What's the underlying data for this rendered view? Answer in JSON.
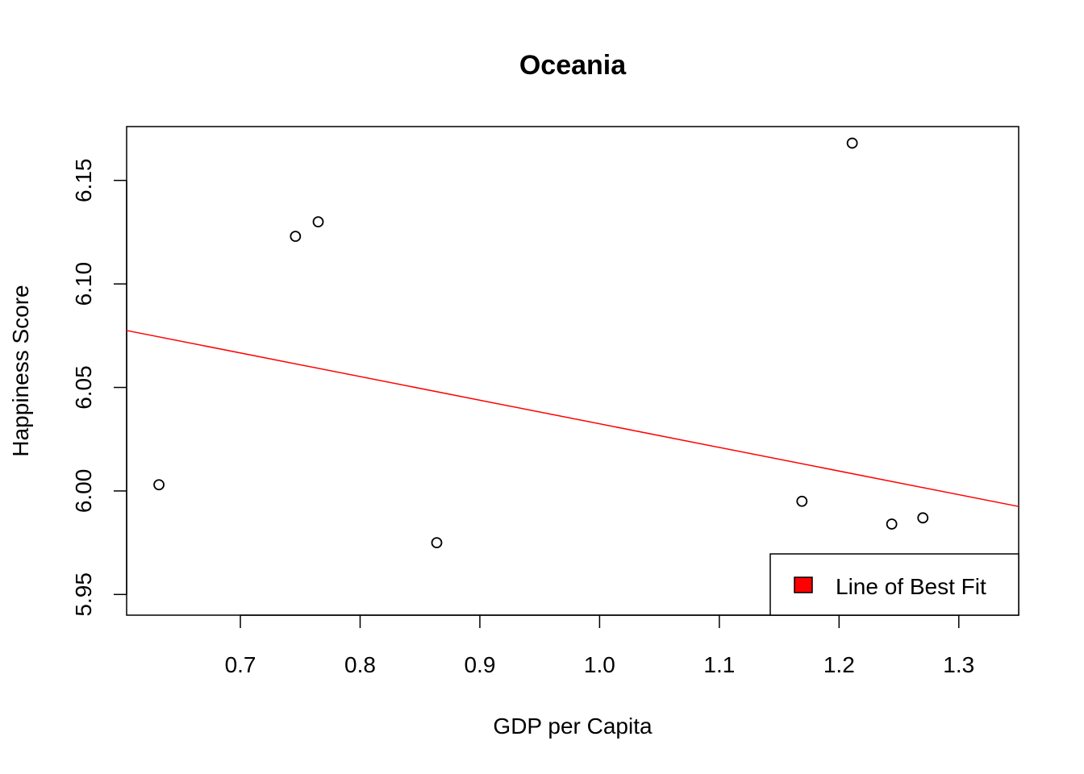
{
  "chart_data": {
    "type": "scatter",
    "title": "Oceania",
    "xlabel": "GDP per Capita",
    "ylabel": "Happiness Score",
    "xlim": [
      0.605,
      1.35
    ],
    "ylim": [
      5.94,
      6.176
    ],
    "xticks": [
      "0.7",
      "0.8",
      "0.9",
      "1.0",
      "1.1",
      "1.2",
      "1.3"
    ],
    "yticks": [
      "5.95",
      "6.00",
      "6.05",
      "6.10",
      "6.15"
    ],
    "points": [
      {
        "x": 0.632,
        "y": 6.003
      },
      {
        "x": 0.746,
        "y": 6.123
      },
      {
        "x": 0.765,
        "y": 6.13
      },
      {
        "x": 0.864,
        "y": 5.975
      },
      {
        "x": 1.169,
        "y": 5.995
      },
      {
        "x": 1.211,
        "y": 6.168
      },
      {
        "x": 1.244,
        "y": 5.984
      },
      {
        "x": 1.27,
        "y": 5.987
      }
    ],
    "fit_line": {
      "color": "#ff0000",
      "start": {
        "x": 0.605,
        "y": 6.0775
      },
      "end": {
        "x": 1.35,
        "y": 5.9925
      }
    },
    "legend": {
      "position": "bottom-right",
      "label": "Line of Best Fit",
      "color": "#ff0000"
    },
    "grid": false
  }
}
